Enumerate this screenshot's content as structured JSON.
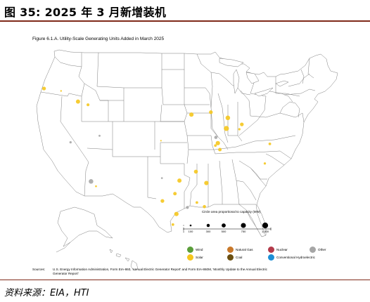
{
  "title": "图 35:  2025 年 3 月新增装机",
  "figure": {
    "caption": "Figure 6.1.A. Utility-Scale Generating Units Added in March 2025",
    "legend_size_title": "Circle area proportional to capacity (MW)",
    "size_ticks": [
      "1",
      "100",
      "300",
      "500",
      "750",
      "1,000"
    ],
    "types": [
      {
        "name": "Wind",
        "color": "#5a9e3a"
      },
      {
        "name": "Natural Gas",
        "color": "#c8782a"
      },
      {
        "name": "Nuclear",
        "color": "#b33a4a"
      },
      {
        "name": "Other",
        "color": "#a6a6a6"
      },
      {
        "name": "Solar",
        "color": "#f5c61e"
      },
      {
        "name": "Coal",
        "color": "#6b4f10"
      },
      {
        "name": "Conventional Hydroelectric",
        "color": "#1c8fd6"
      }
    ],
    "sources_label": "Sources:",
    "sources_text": "U.S. Energy Information Administration, Form EIA-860, 'Annual Electric Generator Report' and Form EIA-860M, 'Monthly Update to the Annual Electric Generator Report'"
  },
  "map_points": [
    {
      "location": "Oregon",
      "lon": -123.0,
      "lat": 44.6,
      "type": "Solar",
      "mw": 40
    },
    {
      "location": "Idaho",
      "lon": -116.2,
      "lat": 43.0,
      "type": "Solar",
      "mw": 50
    },
    {
      "location": "Idaho",
      "lon": -114.2,
      "lat": 42.6,
      "type": "Solar",
      "mw": 25
    },
    {
      "location": "Nevada",
      "lon": -117.7,
      "lat": 38.0,
      "type": "Other",
      "mw": 15
    },
    {
      "location": "Utah",
      "lon": -111.9,
      "lat": 38.8,
      "type": "Other",
      "mw": 12
    },
    {
      "location": "Arizona",
      "lon": -113.6,
      "lat": 33.2,
      "type": "Other",
      "mw": 60
    },
    {
      "location": "Arizona",
      "lon": -112.6,
      "lat": 32.6,
      "type": "Solar",
      "mw": 10
    },
    {
      "location": "Kansas",
      "lon": -99.6,
      "lat": 38.2,
      "type": "Solar",
      "mw": 5
    },
    {
      "location": "Texas",
      "lon": -99.4,
      "lat": 33.6,
      "type": "Other",
      "mw": 10
    },
    {
      "location": "Texas",
      "lon": -95.9,
      "lat": 33.3,
      "type": "Solar",
      "mw": 50
    },
    {
      "location": "Texas",
      "lon": -96.8,
      "lat": 31.7,
      "type": "Solar",
      "mw": 35
    },
    {
      "location": "Texas",
      "lon": -99.3,
      "lat": 30.8,
      "type": "Solar",
      "mw": 40
    },
    {
      "location": "Texas",
      "lon": -96.5,
      "lat": 29.2,
      "type": "Solar",
      "mw": 55
    },
    {
      "location": "Texas",
      "lon": -97.2,
      "lat": 27.9,
      "type": "Solar",
      "mw": 20
    },
    {
      "location": "Iowa",
      "lon": -93.5,
      "lat": 41.4,
      "type": "Solar",
      "mw": 55
    },
    {
      "location": "Illinois",
      "lon": -89.6,
      "lat": 41.7,
      "type": "Solar",
      "mw": 40
    },
    {
      "location": "Illinois",
      "lon": -88.6,
      "lat": 38.6,
      "type": "Other",
      "mw": 30
    },
    {
      "location": "Illinois",
      "lon": -88.2,
      "lat": 37.9,
      "type": "Solar",
      "mw": 55
    },
    {
      "location": "Illinois",
      "lon": -88.7,
      "lat": 37.6,
      "type": "Solar",
      "mw": 20
    },
    {
      "location": "Kentucky",
      "lon": -87.8,
      "lat": 37.1,
      "type": "Solar",
      "mw": 35
    },
    {
      "location": "Indiana",
      "lon": -86.2,
      "lat": 41.0,
      "type": "Solar",
      "mw": 60
    },
    {
      "location": "Indiana",
      "lon": -86.5,
      "lat": 39.7,
      "type": "Solar",
      "mw": 75
    },
    {
      "location": "Ohio",
      "lon": -83.4,
      "lat": 40.2,
      "type": "Solar",
      "mw": 40
    },
    {
      "location": "Ohio",
      "lon": -83.9,
      "lat": 39.6,
      "type": "Solar",
      "mw": 15
    },
    {
      "location": "Virginia",
      "lon": -77.8,
      "lat": 37.8,
      "type": "Solar",
      "mw": 20
    },
    {
      "location": "North Carolina",
      "lon": -78.8,
      "lat": 35.4,
      "type": "Solar",
      "mw": 15
    },
    {
      "location": "Arkansas",
      "lon": -92.6,
      "lat": 34.4,
      "type": "Solar",
      "mw": 45
    },
    {
      "location": "Mississippi",
      "lon": -90.5,
      "lat": 33.0,
      "type": "Solar",
      "mw": 55
    },
    {
      "location": "Louisiana",
      "lon": -92.4,
      "lat": 30.6,
      "type": "Solar",
      "mw": 20
    },
    {
      "location": "Louisiana",
      "lon": -90.9,
      "lat": 30.1,
      "type": "Solar",
      "mw": 30
    },
    {
      "location": "Texas",
      "lon": -94.3,
      "lat": 30.0,
      "type": "Other",
      "mw": 25
    },
    {
      "location": "Oregon",
      "lon": -119.6,
      "lat": 44.3,
      "type": "Solar",
      "mw": 8
    }
  ],
  "source_note": "资料来源：EIA，HTI"
}
